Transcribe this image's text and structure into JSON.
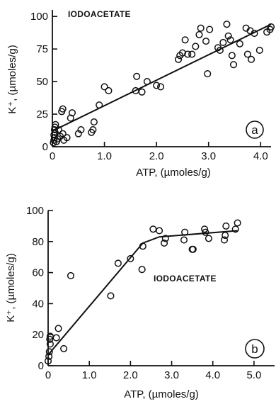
{
  "chart_data": [
    {
      "type": "scatter",
      "panel": "a",
      "annotation": "IODOACETATE",
      "xlabel": "ATP, (µmoles/g)",
      "ylabel": "K⁺, (µmoles/g)",
      "xlim": [
        0,
        4.2
      ],
      "ylim": [
        0,
        105
      ],
      "xticks": [
        0,
        1.0,
        2.0,
        3.0,
        4.0
      ],
      "xtick_labels": [
        "0",
        "1.0",
        "2.0",
        "3.0",
        "4.0"
      ],
      "yticks": [
        0,
        25,
        50,
        75,
        100
      ],
      "ytick_labels": [
        "0",
        "25",
        "50",
        "75",
        "100"
      ],
      "fit_line": {
        "x": [
          0,
          4.2
        ],
        "y": [
          12,
          94
        ]
      },
      "points": [
        [
          0.02,
          3
        ],
        [
          0.03,
          5
        ],
        [
          0.04,
          7
        ],
        [
          0.03,
          9
        ],
        [
          0.05,
          11
        ],
        [
          0.04,
          13
        ],
        [
          0.05,
          15
        ],
        [
          0.06,
          17
        ],
        [
          0.08,
          4
        ],
        [
          0.1,
          6
        ],
        [
          0.15,
          8
        ],
        [
          0.2,
          10
        ],
        [
          0.22,
          5
        ],
        [
          0.28,
          7
        ],
        [
          0.12,
          13
        ],
        [
          0.18,
          27
        ],
        [
          0.2,
          29
        ],
        [
          0.35,
          22
        ],
        [
          0.38,
          26
        ],
        [
          0.5,
          10
        ],
        [
          0.55,
          13
        ],
        [
          0.75,
          11
        ],
        [
          0.78,
          13
        ],
        [
          0.8,
          19
        ],
        [
          0.9,
          32
        ],
        [
          1.0,
          46
        ],
        [
          1.08,
          43
        ],
        [
          1.6,
          43
        ],
        [
          1.62,
          54
        ],
        [
          1.72,
          42
        ],
        [
          1.82,
          50
        ],
        [
          2.0,
          47
        ],
        [
          2.08,
          46
        ],
        [
          2.42,
          67
        ],
        [
          2.45,
          70
        ],
        [
          2.5,
          72
        ],
        [
          2.6,
          71
        ],
        [
          2.68,
          71
        ],
        [
          2.55,
          82
        ],
        [
          2.75,
          77
        ],
        [
          2.82,
          86
        ],
        [
          2.85,
          91
        ],
        [
          2.95,
          81
        ],
        [
          2.98,
          56
        ],
        [
          3.02,
          90
        ],
        [
          3.18,
          76
        ],
        [
          3.22,
          74
        ],
        [
          3.28,
          80
        ],
        [
          3.35,
          94
        ],
        [
          3.38,
          85
        ],
        [
          3.42,
          82
        ],
        [
          3.45,
          70
        ],
        [
          3.48,
          63
        ],
        [
          3.6,
          79
        ],
        [
          3.72,
          91
        ],
        [
          3.75,
          71
        ],
        [
          3.8,
          89
        ],
        [
          3.82,
          67
        ],
        [
          3.88,
          87
        ],
        [
          3.98,
          74
        ],
        [
          4.12,
          88
        ],
        [
          4.18,
          90
        ],
        [
          4.2,
          92
        ]
      ]
    },
    {
      "type": "scatter",
      "panel": "b",
      "annotation": "IODOACETATE",
      "xlabel": "ATP, (µmoles/g)",
      "ylabel": "K⁺, (µmoles/g)",
      "xlim": [
        0,
        5.5
      ],
      "ylim": [
        0,
        100
      ],
      "xticks": [
        0,
        1.0,
        2.0,
        3.0,
        4.0,
        5.0
      ],
      "xtick_labels": [
        "0",
        "1.0",
        "2.0",
        "3.0",
        "4.0",
        "5.0"
      ],
      "yticks": [
        0,
        20,
        40,
        60,
        80,
        100
      ],
      "ytick_labels": [
        "0",
        "20",
        "40",
        "60",
        "80",
        "100"
      ],
      "fit_line": {
        "x": [
          0,
          2.3,
          2.7,
          4.6
        ],
        "y": [
          7,
          79,
          83,
          87
        ]
      },
      "points": [
        [
          0.0,
          3
        ],
        [
          0.02,
          6
        ],
        [
          0.03,
          9
        ],
        [
          0.05,
          14
        ],
        [
          0.04,
          17
        ],
        [
          0.05,
          19
        ],
        [
          0.2,
          18
        ],
        [
          0.25,
          24
        ],
        [
          0.38,
          11
        ],
        [
          0.55,
          58
        ],
        [
          1.52,
          45
        ],
        [
          1.7,
          66
        ],
        [
          2.0,
          69
        ],
        [
          2.28,
          62
        ],
        [
          2.3,
          77
        ],
        [
          2.55,
          88
        ],
        [
          2.7,
          87
        ],
        [
          2.82,
          79
        ],
        [
          2.85,
          82
        ],
        [
          3.3,
          81
        ],
        [
          3.32,
          86
        ],
        [
          3.5,
          75
        ],
        [
          3.52,
          75
        ],
        [
          3.8,
          88
        ],
        [
          3.82,
          86
        ],
        [
          3.9,
          82
        ],
        [
          4.28,
          81
        ],
        [
          4.3,
          84
        ],
        [
          4.32,
          90
        ],
        [
          4.55,
          88
        ],
        [
          4.6,
          92
        ]
      ]
    }
  ]
}
